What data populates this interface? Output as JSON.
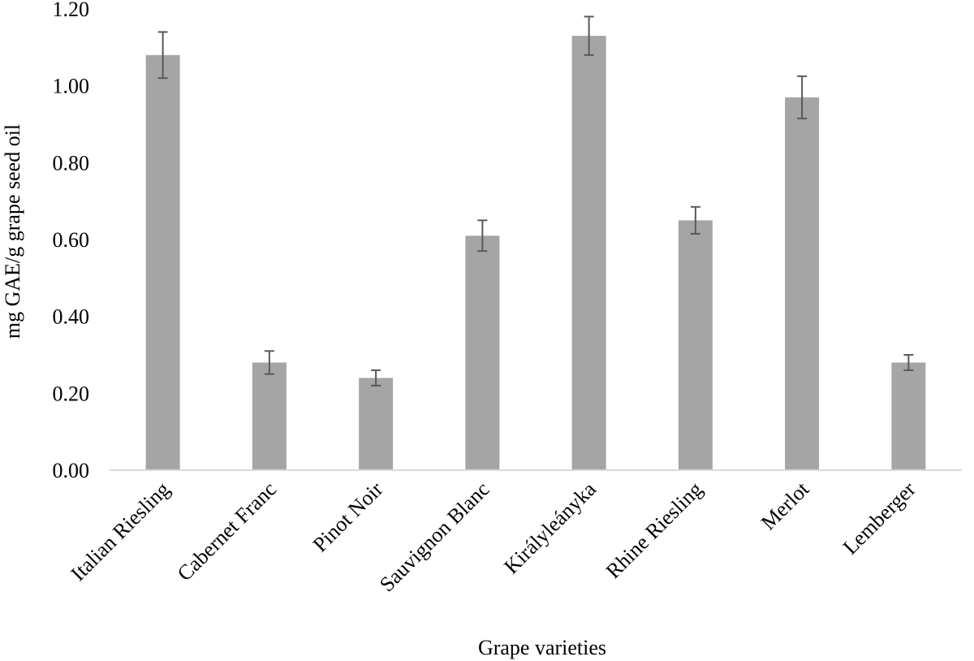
{
  "chart_data": {
    "type": "bar",
    "title": "",
    "xlabel": "Grape varieties",
    "ylabel": "mg GAE/g grape seed oil",
    "categories": [
      "Italian Riesling",
      "Cabernet Franc",
      "Pinot Noir",
      "Sauvignon Blanc",
      "Királyleányka",
      "Rhine Riesling",
      "Merlot",
      "Lemberger"
    ],
    "values": [
      1.08,
      0.28,
      0.24,
      0.61,
      1.13,
      0.65,
      0.97,
      0.28
    ],
    "errors": [
      0.06,
      0.03,
      0.02,
      0.04,
      0.05,
      0.035,
      0.055,
      0.02
    ],
    "ylim": [
      0,
      1.2
    ],
    "yticks": [
      "0.00",
      "0.20",
      "0.40",
      "0.60",
      "0.80",
      "1.00",
      "1.20"
    ],
    "grid": false,
    "legend": "none",
    "colors": {
      "bar": "#a5a5a5",
      "error_bar": "#595959",
      "axis": "#d9d9d9"
    }
  }
}
